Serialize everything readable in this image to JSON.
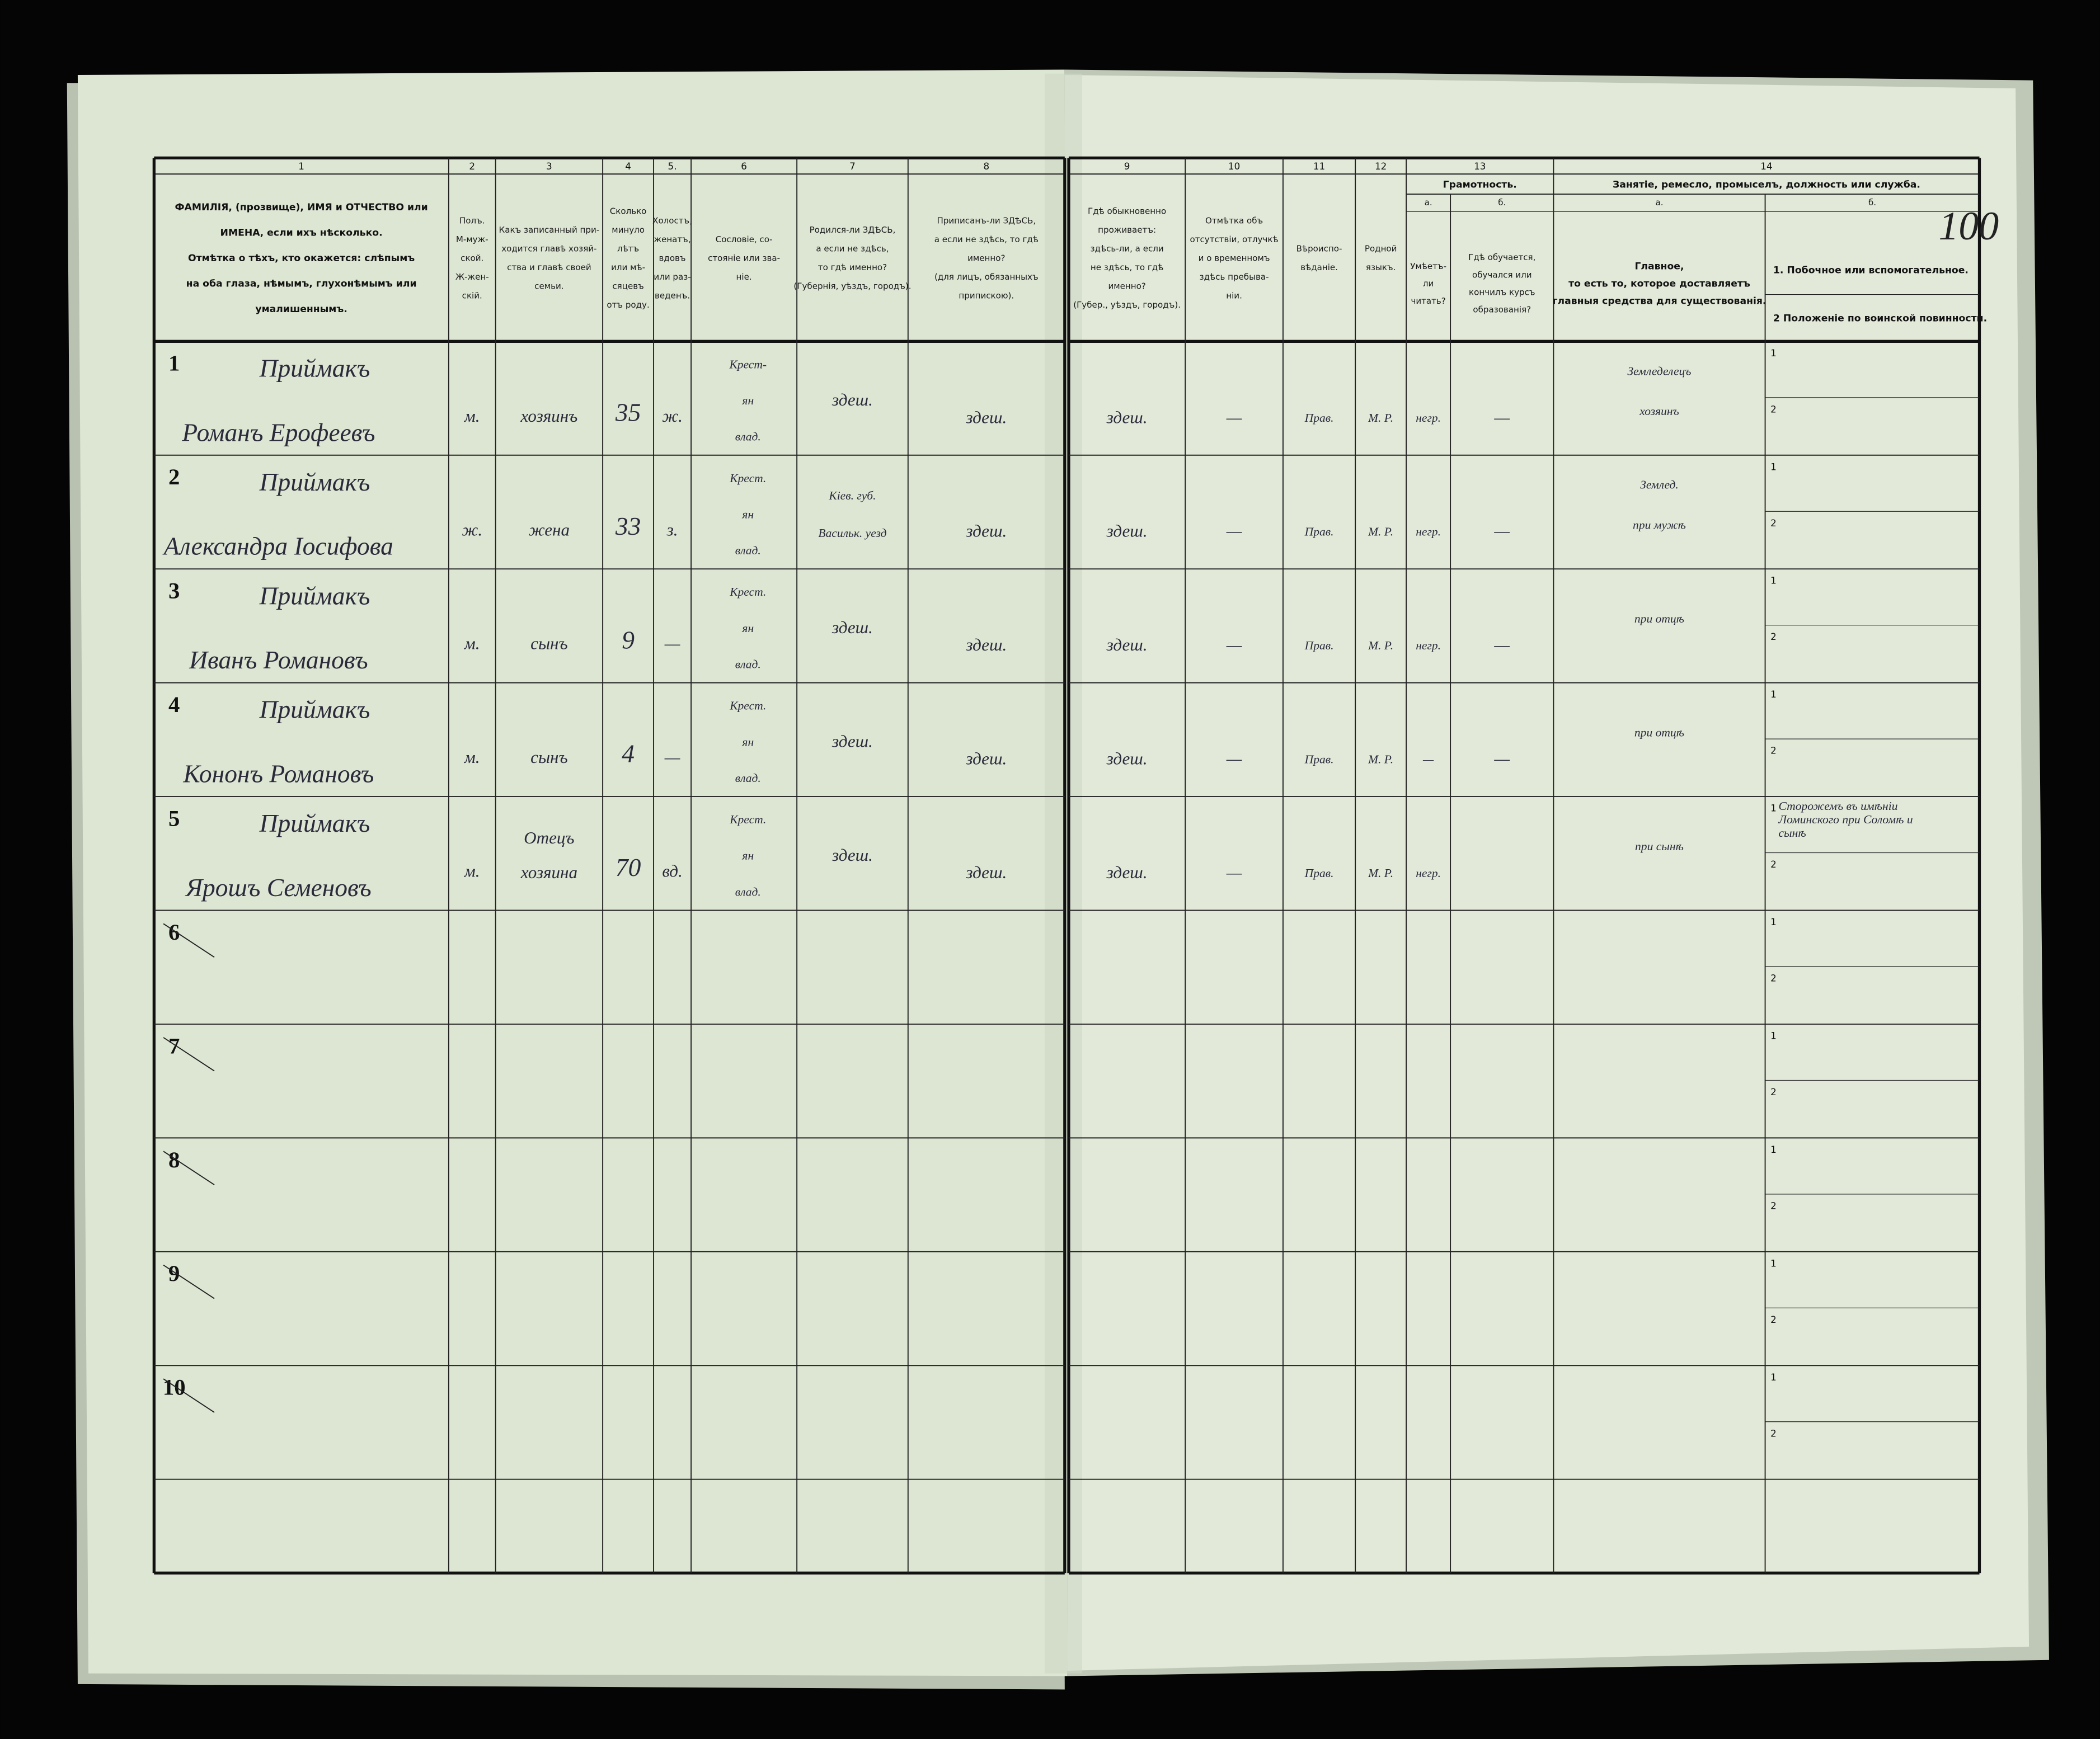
{
  "page_mark": "100",
  "column_numbers": [
    "1",
    "2",
    "3",
    "4",
    "5.",
    "6",
    "7",
    "8",
    "9",
    "10",
    "11",
    "12",
    "13",
    "14"
  ],
  "headers": [
    {
      "lines": [
        "ФАМИЛІЯ, (прозвище), ИМЯ и ОТЧЕСТВО или",
        "ИМЕНА, если ихъ нѣсколько.",
        "Отмѣтка о тѣхъ, кто окажется: слѣпымъ",
        "на оба глаза, нѣмымъ, глухонѣмымъ или",
        "умалишеннымъ."
      ]
    },
    {
      "lines": [
        "Полъ.",
        "М-муж-",
        "ской.",
        "Ж-жен-",
        "скій."
      ]
    },
    {
      "lines": [
        "Какъ записанный при-",
        "ходится главѣ хозяй-",
        "ства и главѣ своей",
        "семьи."
      ]
    },
    {
      "lines": [
        "Сколько",
        "минуло",
        "лѣтъ",
        "или мѣ-",
        "сяцевъ",
        "отъ роду."
      ]
    },
    {
      "lines": [
        "Холостъ,",
        "женатъ,",
        "вдовъ",
        "или раз-",
        "веденъ."
      ]
    },
    {
      "lines": [
        "Сословіе, со-",
        "стояніе или зва-",
        "ніе."
      ]
    },
    {
      "lines": [
        "Родился-ли ЗДѢСЬ,",
        "а если не здѣсь,",
        "то гдѣ именно?",
        "(Губернія, уѣздъ, городъ)."
      ]
    },
    {
      "lines": [
        "Приписанъ-ли ЗДѢСЬ,",
        "а если не здѣсь, то гдѣ",
        "именно?",
        "(для лицъ, обязанныхъ",
        "припискою)."
      ]
    },
    {
      "lines": [
        "Гдѣ обыкновенно",
        "проживаетъ:",
        "здѣсь-ли, а если",
        "не здѣсь, то гдѣ",
        "именно?",
        "(Губер., уѣздъ, городъ)."
      ]
    },
    {
      "lines": [
        "Отмѣтка объ",
        "отсутствіи, отлучкѣ",
        "и о временномъ",
        "здѣсь пребыва-",
        "ніи."
      ]
    },
    {
      "lines": [
        "Вѣроиспо-",
        "вѣданіе."
      ]
    },
    {
      "lines": [
        "Родной",
        "языкъ."
      ]
    },
    {
      "title": "Грамотность.",
      "sub": [
        {
          "letter": "а.",
          "lines": [
            "Умѣетъ-",
            "ли",
            "читать?"
          ]
        },
        {
          "letter": "б.",
          "lines": [
            "Гдѣ обучается,",
            "обучался или",
            "кончилъ курсъ",
            "образованія?"
          ]
        }
      ]
    },
    {
      "title": "Занятіе, ремесло, промыселъ, должность или служба.",
      "sub": [
        {
          "letter": "а.",
          "lines": [
            "Главное,",
            "то есть то, которое доставляетъ",
            "главныя средства для существованія."
          ]
        },
        {
          "letter": "б.",
          "lines": [
            "1.  Побочное или вспомогательное.",
            "2  Положеніе по воинской повинности."
          ]
        }
      ]
    }
  ],
  "sub_labels": [
    "1",
    "2"
  ],
  "rows": [
    {
      "number": "1",
      "surname": "Приймакъ",
      "name": "Романъ Ерофеевъ",
      "sex": "м.",
      "relation": [
        "хозяинъ"
      ],
      "age": "35",
      "marital": "ж.",
      "estate": [
        "Крест-",
        "ян",
        "влад."
      ],
      "born": [
        "здеш."
      ],
      "registered": "здеш.",
      "residence": "здеш.",
      "absence": "—",
      "religion": "Прав.",
      "language": "М. Р.",
      "literacy": "негр.",
      "education": "—",
      "occupation_main": [
        "Земледелецъ",
        "хозяинъ"
      ]
    },
    {
      "number": "2",
      "surname": "Приймакъ",
      "name": "Александра Іосифова",
      "sex": "ж.",
      "relation": [
        "жена"
      ],
      "age": "33",
      "marital": "з.",
      "estate": [
        "Крест.",
        "ян",
        "влад."
      ],
      "born": [
        "Кіев. губ.",
        "Васильк. уезд"
      ],
      "registered": "здеш.",
      "residence": "здеш.",
      "absence": "—",
      "religion": "Прав.",
      "language": "М. Р.",
      "literacy": "негр.",
      "education": "—",
      "occupation_main": [
        "Землед.",
        "при мужѣ"
      ]
    },
    {
      "number": "3",
      "surname": "Приймакъ",
      "name": "Иванъ Романовъ",
      "sex": "м.",
      "relation": [
        "сынъ"
      ],
      "age": "9",
      "marital": "—",
      "estate": [
        "Крест.",
        "ян",
        "влад."
      ],
      "born": [
        "здеш."
      ],
      "registered": "здеш.",
      "residence": "здеш.",
      "absence": "—",
      "religion": "Прав.",
      "language": "М. Р.",
      "literacy": "негр.",
      "education": "—",
      "occupation_main": [
        "при отцѣ"
      ]
    },
    {
      "number": "4",
      "surname": "Приймакъ",
      "name": "Кононъ Романовъ",
      "sex": "м.",
      "relation": [
        "сынъ"
      ],
      "age": "4",
      "marital": "—",
      "estate": [
        "Крест.",
        "ян",
        "влад."
      ],
      "born": [
        "здеш."
      ],
      "registered": "здеш.",
      "residence": "здеш.",
      "absence": "—",
      "religion": "Прав.",
      "language": "М. Р.",
      "literacy": "—",
      "education": "—",
      "occupation_main": [
        "при отцѣ"
      ]
    },
    {
      "number": "5",
      "surname": "Приймакъ",
      "name": "Ярошъ Семеновъ",
      "sex": "м.",
      "relation": [
        "Отецъ",
        "хозяина"
      ],
      "age": "70",
      "marital": "вд.",
      "estate": [
        "Крест.",
        "ян",
        "влад."
      ],
      "born": [
        "здеш."
      ],
      "registered": "здеш.",
      "residence": "здеш.",
      "absence": "—",
      "religion": "Прав.",
      "language": "М. Р.",
      "literacy": "негр.",
      "occupation_main": [
        "при сынѣ"
      ],
      "occupation_secondary": [
        "Сторожемъ въ имѣніи",
        "Ломинского при Соломѣ и",
        "сынѣ"
      ]
    },
    {
      "number": "6"
    },
    {
      "number": "7"
    },
    {
      "number": "8"
    },
    {
      "number": "9"
    },
    {
      "number": "10"
    }
  ]
}
